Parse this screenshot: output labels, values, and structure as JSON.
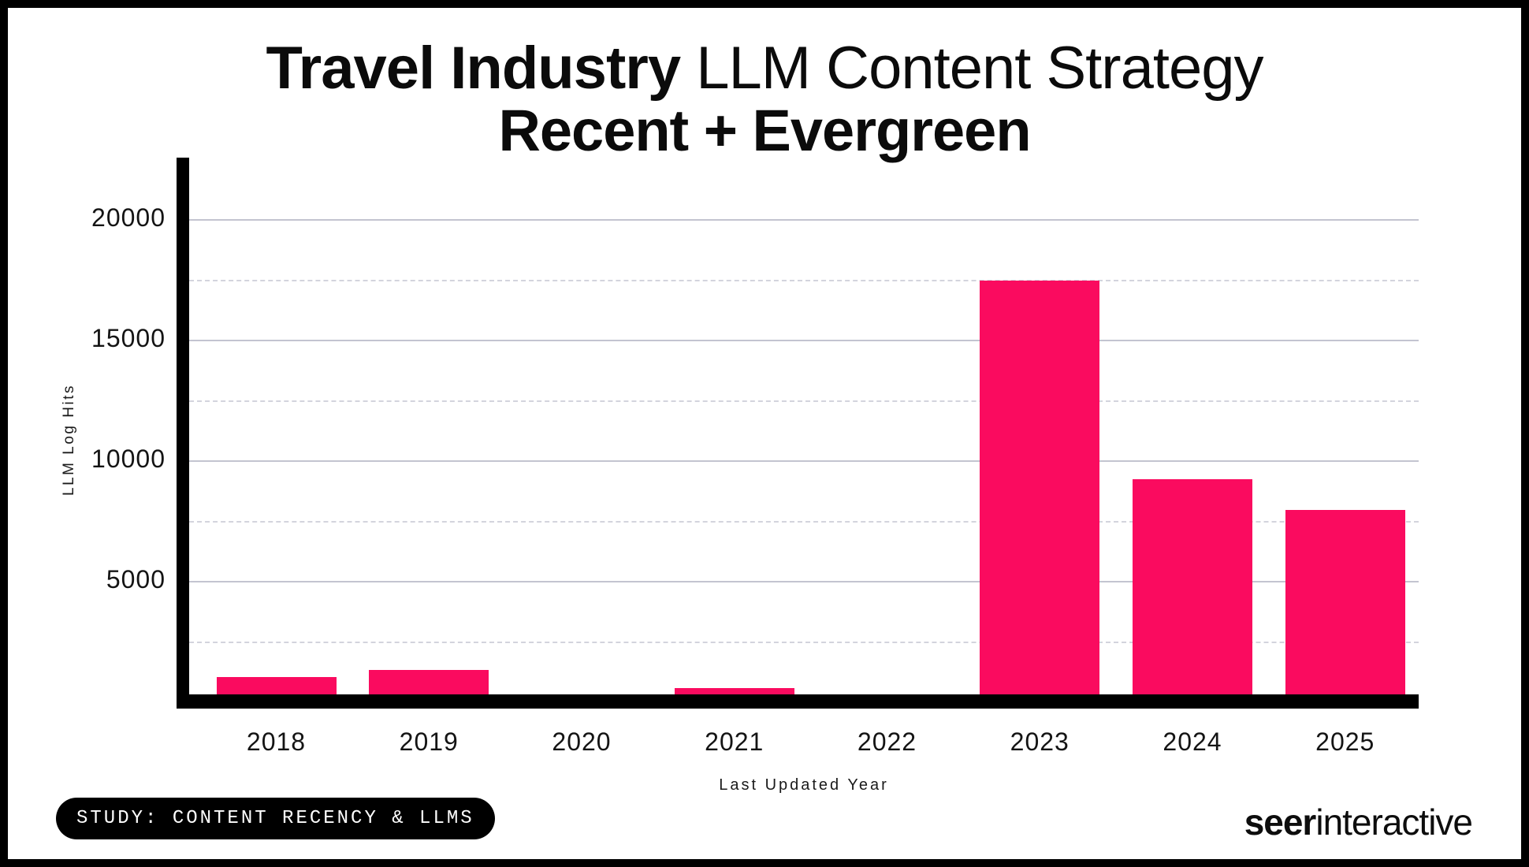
{
  "title": {
    "line1_bold": "Travel Industry",
    "line1_rest": " LLM Content Strategy",
    "line2": "Recent + Evergreen"
  },
  "chart_data": {
    "type": "bar",
    "title": "Travel Industry LLM Content Strategy — Recent + Evergreen",
    "categories": [
      "2018",
      "2019",
      "2020",
      "2021",
      "2022",
      "2023",
      "2024",
      "2025"
    ],
    "values": [
      1000,
      1300,
      0,
      550,
      0,
      17450,
      9200,
      7950
    ],
    "xlabel": "Last Updated Year",
    "ylabel": "LLM Log Hits",
    "ylim": [
      0,
      22500
    ],
    "yticks": [
      5000,
      10000,
      15000,
      20000
    ],
    "gridlines_solid": [
      5000,
      10000,
      15000,
      20000
    ],
    "gridlines_dashed": [
      2500,
      7500,
      12500,
      17500
    ],
    "bar_color": "#FA0B5F",
    "grid": "horizontal-only",
    "legend_position": "none"
  },
  "footer": {
    "study_badge": "STUDY: CONTENT RECENCY & LLMS",
    "logo_bold": "seer",
    "logo_rest": "interactive"
  }
}
